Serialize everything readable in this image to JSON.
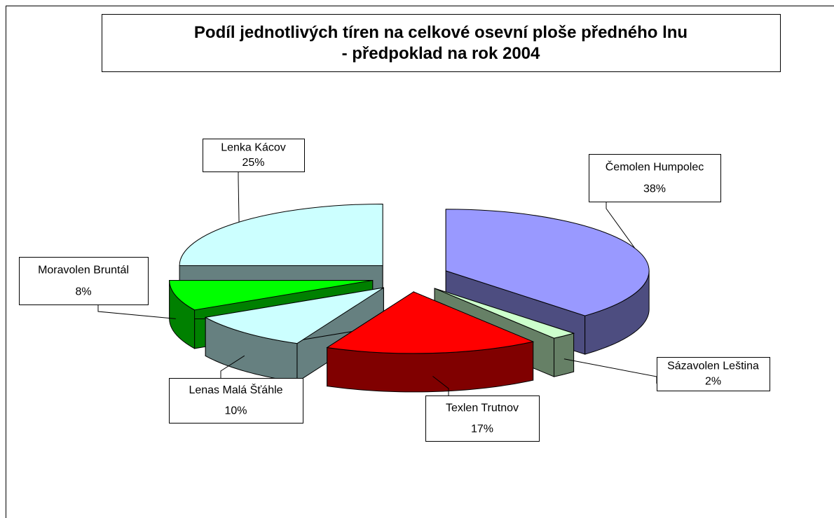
{
  "chart_data": {
    "type": "pie3d",
    "title": "Podíl jednotlivých tíren na celkové osevní ploše předného lnu - předpoklad na rok 2004",
    "categories": [
      "Čemolen Humpolec",
      "Sázavolen Leština",
      "Texlen Trutnov",
      "Lenas Malá Šťáhle",
      "Moravolen Bruntál",
      "Lenka Kácov"
    ],
    "values": [
      38,
      2,
      17,
      10,
      8,
      25
    ],
    "value_labels": [
      "38%",
      "2%",
      "17%",
      "10%",
      "8%",
      "25%"
    ],
    "colors": [
      "#9999ff",
      "#ccffcc",
      "#ff0000",
      "#ccffff",
      "#00ff00",
      "#ccffff"
    ]
  }
}
